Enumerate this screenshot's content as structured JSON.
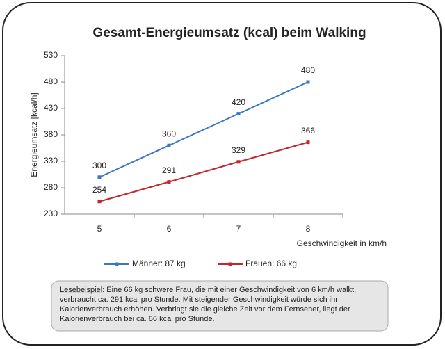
{
  "chart_data": {
    "type": "line",
    "title": "Gesamt-Energieumsatz (kcal) beim Walking",
    "y_label": "Energieumsatz [kcal/h]",
    "x_label": "Geschwindigkeit in km/h",
    "categories": [
      "5",
      "6",
      "7",
      "8"
    ],
    "series": [
      {
        "name": "Männer: 87 kg",
        "color": "#3b78c3",
        "values": [
          300,
          360,
          420,
          480
        ]
      },
      {
        "name": "Frauen: 66 kg",
        "color": "#c0282e",
        "values": [
          254,
          291,
          329,
          366
        ]
      }
    ],
    "ylim": [
      230,
      530
    ],
    "yticks": [
      230,
      280,
      330,
      380,
      430,
      480,
      530
    ],
    "grid": false,
    "note": {
      "label": "Lesebeispiel",
      "lines": [
        ":  Eine 66 kg schwere Frau, die mit einer Geschwindigkeit von 6 km/h walkt,",
        "verbraucht ca. 291 kcal pro Stunde. Mit steigender Geschwindigkeit würde sich ihr",
        "Kalorienverbrauch erhöhen.  Verbringt sie die gleiche Zeit vor dem Fernseher, liegt der",
        "Kalorienverbrauch bei  ca. 66 kcal pro Stunde."
      ]
    }
  }
}
